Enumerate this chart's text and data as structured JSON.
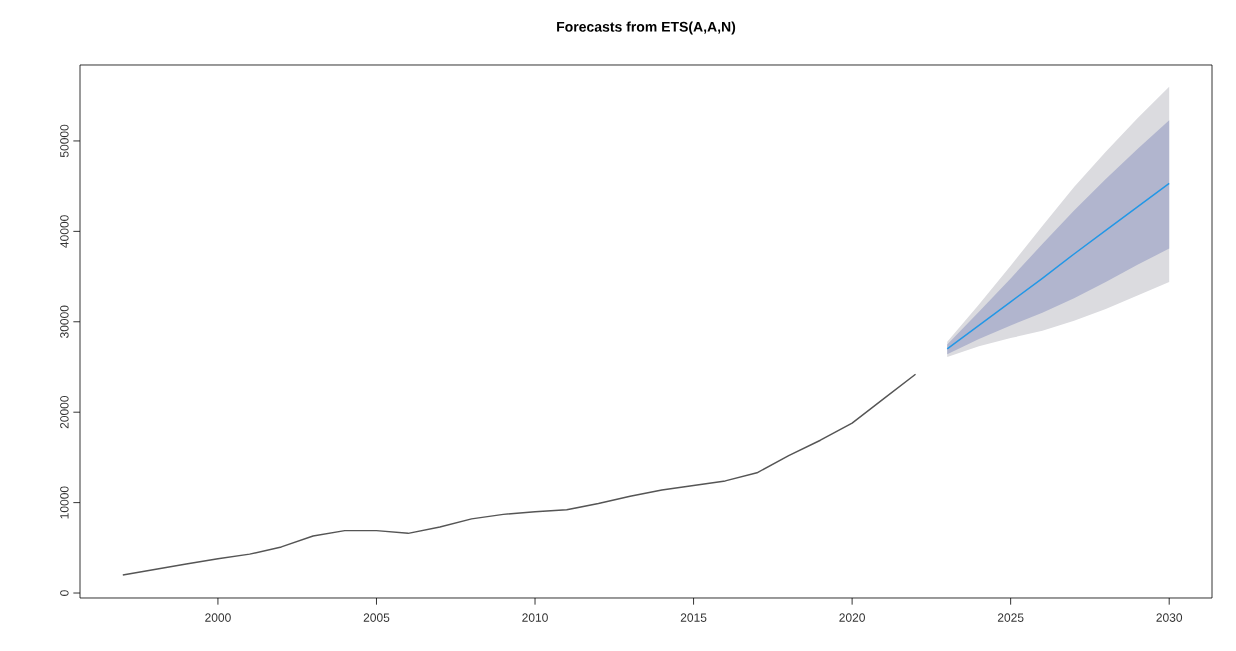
{
  "chart_data": {
    "type": "line",
    "title": "Forecasts from ETS(A,A,N)",
    "xlim": [
      1995.65,
      2031.35
    ],
    "xticks": [
      2000,
      2005,
      2010,
      2015,
      2020,
      2025,
      2030
    ],
    "ylim": [
      -550,
      58400
    ],
    "yticks": [
      0,
      10000,
      20000,
      30000,
      40000,
      50000
    ],
    "grid": false,
    "legend": false,
    "marker": "none",
    "line_style": "solid",
    "series": [
      {
        "color": "#dbdbdf",
        "x": [
          2023,
          2024,
          2025,
          2026,
          2027,
          2028,
          2029,
          2030
        ],
        "values": [
          null,
          null,
          null,
          null,
          null,
          null,
          null,
          null
        ],
        "lower": [
          26100,
          27300,
          28200,
          29000,
          30100,
          31400,
          32900,
          34400
        ],
        "upper": [
          27800,
          31900,
          36200,
          40600,
          44900,
          48800,
          52500,
          56000
        ]
      },
      {
        "color": "#b1b5ce",
        "x": [
          2023,
          2024,
          2025,
          2026,
          2027,
          2028,
          2029,
          2030
        ],
        "values": [
          null,
          null,
          null,
          null,
          null,
          null,
          null,
          null
        ],
        "lower": [
          26400,
          28100,
          29600,
          31000,
          32600,
          34400,
          36300,
          38100
        ],
        "upper": [
          27500,
          31100,
          34800,
          38600,
          42300,
          45800,
          49100,
          52300
        ]
      },
      {
        "color": "#555555",
        "x": [
          1997,
          1998,
          1999,
          2000,
          2001,
          2002,
          2003,
          2004,
          2005,
          2006,
          2007,
          2008,
          2009,
          2010,
          2011,
          2012,
          2013,
          2014,
          2015,
          2016,
          2017,
          2018,
          2019,
          2020,
          2021,
          2022
        ],
        "values": [
          2000,
          2600,
          3200,
          3800,
          4300,
          5100,
          6300,
          6900,
          6900,
          6600,
          7300,
          8200,
          8700,
          9000,
          9200,
          9900,
          10700,
          11400,
          11900,
          12400,
          13300,
          15200,
          16900,
          18800,
          21500,
          24200
        ]
      },
      {
        "color": "#2297e6",
        "x": [
          2023,
          2024,
          2025,
          2026,
          2027,
          2028,
          2029,
          2030
        ],
        "values": [
          27000,
          29600,
          32200,
          34800,
          37500,
          40100,
          42700,
          45300
        ]
      }
    ]
  }
}
